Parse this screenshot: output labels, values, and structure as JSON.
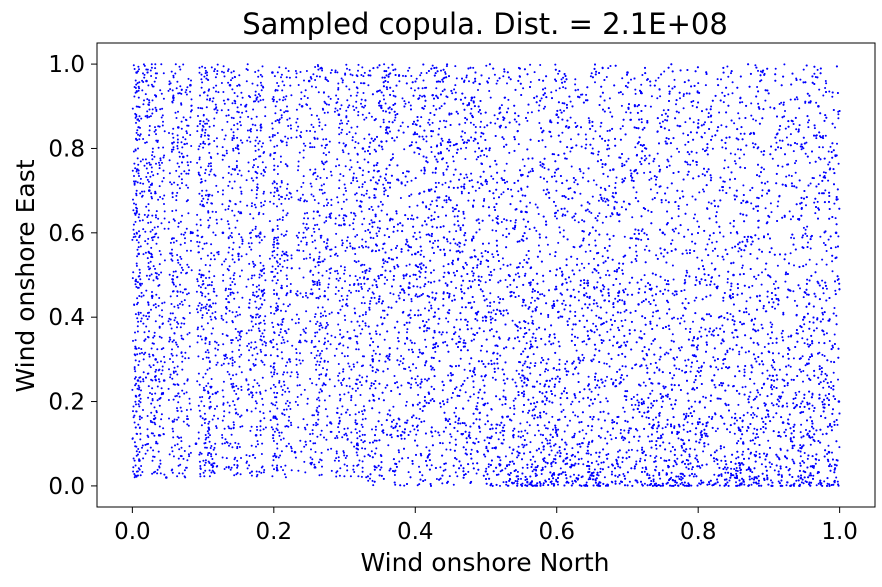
{
  "chart_data": {
    "type": "scatter",
    "title": "Sampled copula. Dist. = 2.1E+08",
    "xlabel": "Wind onshore North",
    "ylabel": "Wind onshore East",
    "xlim": [
      -0.05,
      1.05
    ],
    "ylim": [
      -0.05,
      1.05
    ],
    "xticks": [
      0.0,
      0.2,
      0.4,
      0.6,
      0.8,
      1.0
    ],
    "yticks": [
      0.0,
      0.2,
      0.4,
      0.6,
      0.8,
      1.0
    ],
    "xtick_labels": [
      "0.0",
      "0.2",
      "0.4",
      "0.6",
      "0.8",
      "1.0"
    ],
    "ytick_labels": [
      "0.0",
      "0.2",
      "0.4",
      "0.6",
      "0.8",
      "1.0"
    ],
    "grid": false,
    "legend": null,
    "marker_color": "#0000ff",
    "series": [
      {
        "points": [
          [
            0.006,
            0.98
          ],
          [
            0.007,
            0.75
          ],
          [
            0.009,
            0.55
          ],
          [
            0.008,
            0.25
          ],
          [
            0.01,
            0.06
          ],
          [
            0.02,
            0.96
          ],
          [
            0.024,
            0.7
          ],
          [
            0.028,
            0.45
          ],
          [
            0.033,
            0.3
          ],
          [
            0.038,
            0.12
          ],
          [
            0.045,
            0.25
          ],
          [
            0.048,
            0.02
          ],
          [
            0.058,
            0.92
          ],
          [
            0.065,
            0.85
          ],
          [
            0.072,
            0.78
          ],
          [
            0.082,
            0.95
          ],
          [
            0.085,
            0.6
          ],
          [
            0.09,
            0.1
          ],
          [
            0.098,
            0.5
          ],
          [
            0.104,
            0.35
          ],
          [
            0.112,
            0.05
          ],
          [
            0.118,
            0.22
          ],
          [
            0.128,
            0.6
          ],
          [
            0.138,
            0.95
          ],
          [
            0.145,
            0.75
          ],
          [
            0.15,
            0.55
          ],
          [
            0.16,
            0.9
          ],
          [
            0.17,
            0.4
          ],
          [
            0.175,
            0.12
          ],
          [
            0.182,
            0.85
          ],
          [
            0.198,
            0.98
          ],
          [
            0.205,
            0.7
          ],
          [
            0.215,
            0.55
          ],
          [
            0.222,
            0.3
          ],
          [
            0.23,
            0.08
          ],
          [
            0.24,
            0.9
          ],
          [
            0.25,
            0.96
          ],
          [
            0.262,
            0.65
          ],
          [
            0.272,
            0.45
          ],
          [
            0.28,
            0.15
          ],
          [
            0.292,
            0.88
          ],
          [
            0.3,
            0.62
          ],
          [
            0.308,
            0.35
          ],
          [
            0.318,
            0.1
          ],
          [
            0.326,
            0.8
          ],
          [
            0.34,
            0.3
          ],
          [
            0.36,
            0.85
          ],
          [
            0.38,
            0.12
          ],
          [
            0.4,
            0.55
          ],
          [
            0.42,
            0.7
          ],
          [
            0.45,
            0.25
          ],
          [
            0.48,
            0.92
          ],
          [
            0.5,
            0.4
          ],
          [
            0.52,
            0.05
          ],
          [
            0.55,
            0.65
          ],
          [
            0.58,
            0.2
          ],
          [
            0.6,
            0.88
          ],
          [
            0.62,
            0.45
          ],
          [
            0.65,
            0.03
          ],
          [
            0.68,
            0.75
          ],
          [
            0.7,
            0.98
          ],
          [
            0.72,
            0.35
          ],
          [
            0.75,
            0.6
          ],
          [
            0.78,
            0.1
          ],
          [
            0.8,
            0.85
          ],
          [
            0.82,
            0.25
          ],
          [
            0.85,
            0.5
          ],
          [
            0.88,
            0.02
          ],
          [
            0.9,
            0.7
          ],
          [
            0.92,
            0.15
          ],
          [
            0.95,
            0.4
          ],
          [
            0.97,
            0.9
          ],
          [
            0.985,
            0.08
          ],
          [
            0.995,
            0.6
          ],
          [
            0.999,
            0.2
          ]
        ]
      }
    ]
  }
}
